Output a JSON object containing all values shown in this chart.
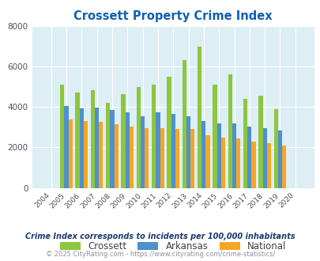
{
  "title": "Crossett Property Crime Index",
  "years": [
    "2004",
    "2005",
    "2006",
    "2007",
    "2008",
    "2009",
    "2010",
    "2011",
    "2012",
    "2013",
    "2014",
    "2015",
    "2016",
    "2017",
    "2018",
    "2019",
    "2020"
  ],
  "crossett": [
    0,
    5100,
    4700,
    4850,
    4200,
    4650,
    5000,
    5100,
    5500,
    6300,
    7000,
    5100,
    5600,
    4400,
    4550,
    3900,
    0
  ],
  "arkansas": [
    0,
    4050,
    3950,
    3980,
    3870,
    3750,
    3550,
    3750,
    3650,
    3550,
    3300,
    3200,
    3200,
    3050,
    2950,
    2850,
    0
  ],
  "national": [
    0,
    3400,
    3300,
    3250,
    3150,
    3050,
    2950,
    2950,
    2900,
    2900,
    2600,
    2500,
    2450,
    2300,
    2200,
    2100,
    0
  ],
  "crossett_color": "#8dc63f",
  "arkansas_color": "#4f90cd",
  "national_color": "#f5a623",
  "bg_color": "#ddeef5",
  "ylim": [
    0,
    8000
  ],
  "yticks": [
    0,
    2000,
    4000,
    6000,
    8000
  ],
  "footnote1": "Crime Index corresponds to incidents per 100,000 inhabitants",
  "footnote2": "© 2025 CityRating.com - https://www.cityrating.com/crime-statistics/",
  "title_color": "#1060b0",
  "footnote1_color": "#1a3a6e",
  "footnote2_color": "#9090a0",
  "bar_width": 0.27
}
